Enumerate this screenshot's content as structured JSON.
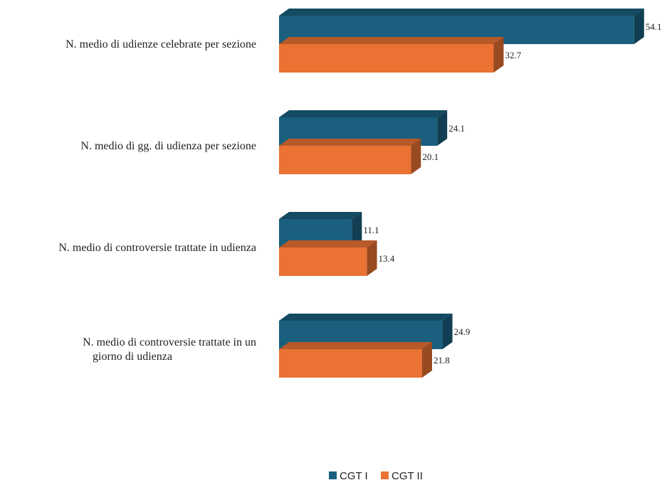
{
  "chart_data": {
    "type": "bar",
    "orientation": "horizontal",
    "style": "3d",
    "categories": [
      "N. medio di udienze celebrate per sezione",
      "N. medio di gg. di udienza per sezione",
      "N. medio di controversie trattate in udienza",
      "N. medio di controversie trattate in un giorno di udienza"
    ],
    "series": [
      {
        "name": "CGT I",
        "color": "#1a5f7e",
        "values": [
          54.1,
          24.1,
          11.1,
          24.9
        ]
      },
      {
        "name": "CGT II",
        "color": "#ea7233",
        "values": [
          32.7,
          20.1,
          13.4,
          21.8
        ]
      }
    ],
    "xlim": [
      0,
      60
    ],
    "grid": false,
    "legend_position": "bottom"
  }
}
